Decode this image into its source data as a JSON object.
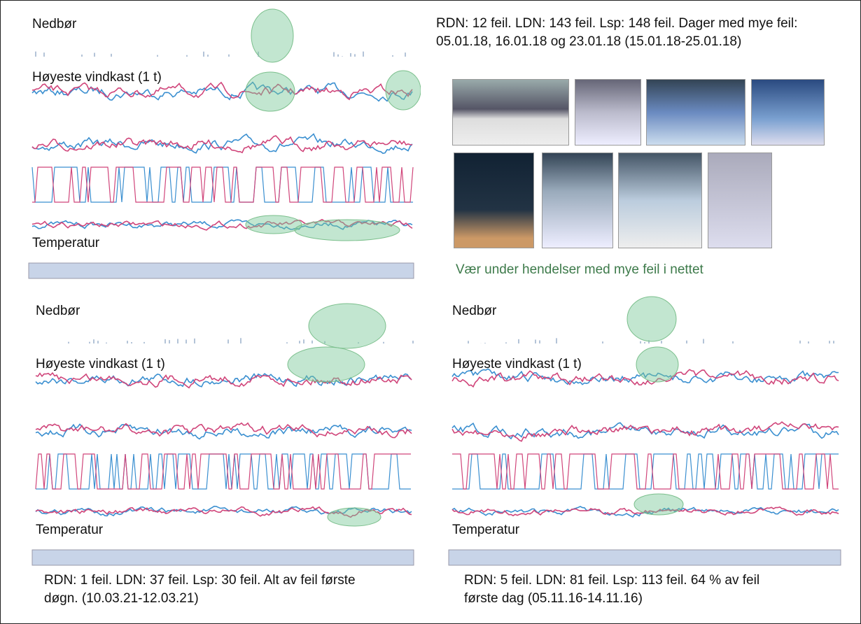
{
  "panels": [
    {
      "labels": [
        "Nedbør",
        "Høyeste vindkast (1 t)",
        "Temperatur"
      ],
      "caption": "RDN: 12 feil. LDN: 143 feil. Lsp: 148 feil. Dager med mye feil: 05.01.18, 16.01.18 og 23.01.18 (15.01.18-25.01.18)"
    },
    {
      "labels": [
        "Nedbør",
        "Høyeste vindkast (1 t)",
        "Temperatur"
      ],
      "caption": "RDN: 1 feil. LDN: 37 feil. Lsp: 30 feil. Alt av feil første døgn. (10.03.21-12.03.21)"
    },
    {
      "labels": [
        "Nedbør",
        "Høyeste vindkast (1 t)",
        "Temperatur"
      ],
      "caption": "RDN: 5 feil. LDN: 81 feil. Lsp: 113 feil. 64 % av feil første dag (05.11.16-14.11.16)"
    }
  ],
  "photos": {
    "caption": "Vær under hendelser med mye feil i nettet"
  }
}
